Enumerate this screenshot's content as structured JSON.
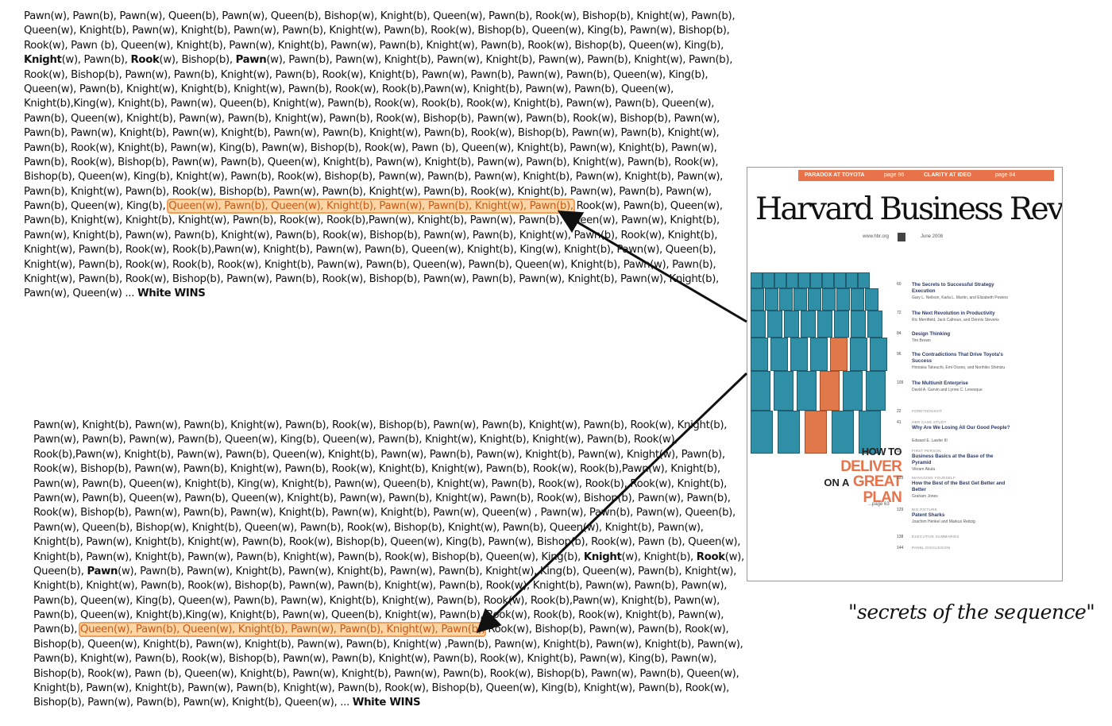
{
  "sequence_top": [
    "Pawn(w), Pawn(b), Pawn(w), Queen(b), Pawn(w), Queen(b), Bishop(w), Knight(b), Queen(w), Pawn(b), Rook(w), Bishop(b), Knight(w), Pawn(b),",
    "Queen(w), Knight(b), Pawn(w), Knight(b), Pawn(w), Pawn(b), Knight(w), Pawn(b), Rook(w), Bishop(b), Queen(w), King(b), Pawn(w), Bishop(b),",
    "Rook(w), Pawn (b), Queen(w), Knight(b), Pawn(w), Knight(b), Pawn(w), Pawn(b), Knight(w), Pawn(b), Rook(w), Bishop(b), Queen(w), King(b),",
    "Knight(w), Pawn(b), Rook(w), Bishop(b), Pawn(w), Pawn(b), Pawn(w), Knight(b), Pawn(w), Knight(b), Pawn(w), Pawn(b), Knight(w), Pawn(b),",
    "Rook(w), Bishop(b), Pawn(w), Pawn(b), Knight(w), Pawn(b), Rook(w), Knight(b), Pawn(w), Pawn(b), Pawn(w), Pawn(b), Queen(w), King(b),",
    "Queen(w), Pawn(b), Knight(w), Knight(b), Knight(w), Pawn(b), Rook(w), Rook(b),Pawn(w), Knight(b), Pawn(w), Pawn(b), Queen(w),",
    "Knight(b),King(w), Knight(b), Pawn(w), Queen(b), Knight(w), Pawn(b), Rook(w), Rook(b), Rook(w), Knight(b), Pawn(w), Pawn(b), Queen(w),",
    "Pawn(b), Queen(w), Knight(b), Pawn(w), Pawn(b), Knight(w), Pawn(b), Rook(w), Bishop(b), Pawn(w), Pawn(b), Rook(w), Bishop(b), Pawn(w),",
    "Pawn(b), Pawn(w), Knight(b), Pawn(w), Knight(b), Pawn(w), Pawn(b), Knight(w), Pawn(b), Rook(w), Bishop(b), Pawn(w), Pawn(b), Knight(w),",
    "Pawn(b), Rook(w), Knight(b), Pawn(w), King(b), Pawn(w), Bishop(b), Rook(w), Pawn (b), Queen(w), Knight(b), Pawn(w), Knight(b), Pawn(w),",
    "Pawn(b), Rook(w), Bishop(b), Pawn(w), Pawn(b), Queen(w), Knight(b), Pawn(w), Knight(b), Pawn(w), Pawn(b), Knight(w), Pawn(b), Rook(w),",
    "Bishop(b), Queen(w), King(b), Knight(w), Pawn(b), Rook(w), Bishop(b), Pawn(w), Pawn(b), Pawn(w), Knight(b), Pawn(w), Knight(b), Pawn(w),",
    "Pawn(b), Knight(w), Pawn(b), Rook(w), Bishop(b), Pawn(w), Pawn(b), Knight(w), Pawn(b), Rook(w), Knight(b), Pawn(w), Pawn(b), Pawn(w),",
    "Pawn(b), Queen(w), King(b),",
    "Pawn(b), Knight(w), Knight(b), Knight(w), Pawn(b), Rook(w), Rook(b),Pawn(w), Knight(b), Pawn(w), Pawn(b), Queen(w), Pawn(w), Knight(b),",
    "Pawn(w), Knight(b), Pawn(w), Pawn(b), Knight(w), Pawn(b), Rook(w), Bishop(b), Pawn(w), Pawn(b), Knight(w), Pawn(b), Rook(w), Knight(b),",
    "Knight(w), Pawn(b), Rook(w), Rook(b),Pawn(w), Knight(b), Pawn(w), Pawn(b), Queen(w), Knight(b), King(w), Knight(b), Pawn(w), Queen(b),",
    "Knight(w), Pawn(b), Rook(w), Rook(b), Rook(w), Knight(b), Pawn(w), Pawn(b), Queen(w), Pawn(b), Queen(w), Knight(b), Pawn(w), Pawn(b),",
    "Knight(w), Pawn(b), Rook(w), Bishop(b), Pawn(w), Pawn(b), Rook(w), Bishop(b), Pawn(w), Pawn(b), Pawn(w), Knight(b), Pawn(w), Knight(b),",
    "Pawn(w), Queen(w) ... White WINS"
  ],
  "sequence_top_highlight_prefix": "Pawn(b), Queen(w), King(b),",
  "sequence_top_highlight": "Queen(w), Pawn(b), Queen(w), Knight(b), Pawn(w), Pawn(b), Knight(w), Pawn(b),",
  "sequence_top_highlight_suffix": "Rook(w), Pawn(b), Queen(w),",
  "sequence_bottom": [
    "Pawn(w), Knight(b), Pawn(w), Pawn(b), Knight(w), Pawn(b), Rook(w), Bishop(b), Pawn(w), Pawn(b), Knight(w), Pawn(b), Rook(w), Knight(b),",
    "Pawn(w), Pawn(b), Pawn(w), Pawn(b), Queen(w), King(b), Queen(w), Pawn(b), Knight(w), Knight(b), Knight(w), Pawn(b), Rook(w),",
    "Rook(b),Pawn(w), Knight(b), Pawn(w), Pawn(b), Queen(w), Knight(b), Pawn(w), Pawn(b), Pawn(w), Knight(b), Pawn(w), Knight(w), Pawn(b),",
    "Rook(w), Bishop(b), Pawn(w), Pawn(b), Knight(w), Pawn(b), Rook(w), Knight(b), Knight(w), Pawn(b), Rook(w), Rook(b),Pawn(w), Knight(b),",
    "Pawn(w), Pawn(b), Queen(w), Knight(b), King(w), Knight(b), Pawn(w), Queen(b), Knight(w), Pawn(b), Rook(w), Rook(b), Rook(w), Knight(b),",
    "Pawn(w), Pawn(b), Queen(w), Pawn(b), Queen(w), Knight(b), Pawn(w), Pawn(b), Knight(w), Pawn(b), Rook(w), Bishop(b), Pawn(w), Pawn(b),",
    "Rook(w), Bishop(b), Pawn(w), Pawn(b), Pawn(w), Knight(b), Pawn(w), Knight(b), Pawn(w), Queen(w) , Pawn(w), Pawn(b), Pawn(w), Queen(b),",
    "Pawn(w), Queen(b), Bishop(w), Knight(b), Queen(w), Pawn(b), Rook(w), Bishop(b), Knight(w), Pawn(b), Queen(w), Knight(b), Pawn(w),",
    "Knight(b), Pawn(w), Knight(b), Knight(w), Pawn(b), Rook(w), Bishop(b), Queen(w), King(b), Pawn(w), Bishop(b), Rook(w), Pawn (b), Queen(w),",
    "Knight(b), Pawn(w), Knight(b), Pawn(w), Pawn(b), Knight(w), Pawn(b), Rook(w), Bishop(b), Queen(w), King(b), Knight(w), Knight(b), Rook(w),",
    "Queen(b), Pawn(w), Pawn(b), Pawn(w), Knight(b), Pawn(w), Knight(b), Pawn(w), Pawn(b), Knight(w), King(b), Queen(w), Pawn(b), Knight(w),",
    "Knight(b), Knight(w), Pawn(b), Rook(w), Bishop(b), Pawn(w), Pawn(b), Knight(w), Pawn(b), Rook(w), Knight(b), Pawn(w), Pawn(b), Pawn(w),",
    "Pawn(b), Queen(w), King(b), Queen(w), Pawn(b), Pawn(w), Knight(b), Knight(w), Pawn(b), Rook(w), Rook(b),Pawn(w), Knight(b), Pawn(w),",
    "Pawn(b), Queen(w), Knight(b),King(w), Knight(b), Pawn(w), Queen(b), Knight(w), Pawn(b), Rook(w), Rook(b), Rook(w), Knight(b), Pawn(w),",
    "Pawn(b),",
    "Bishop(b), Queen(w), Knight(b), Pawn(w), Knight(b), Pawn(w), Pawn(b), Knight(w) ,Pawn(b), Pawn(w), Knight(b), Pawn(w), Knight(b), Pawn(w),",
    "Pawn(b), Knight(w), Pawn(b), Rook(w), Bishop(b), Pawn(w), Pawn(b), Knight(w), Pawn(b), Rook(w), Knight(b), Pawn(w), King(b), Pawn(w),",
    "Bishop(b), Rook(w), Pawn (b), Queen(w), Knight(b), Pawn(w), Knight(b), Pawn(w), Pawn(b), Rook(w), Bishop(b), Pawn(w), Pawn(b), Queen(w),",
    "Knight(b), Pawn(w), Knight(b), Pawn(w), Pawn(b), Knight(w), Pawn(b), Rook(w), Bishop(b), Queen(w), King(b), Knight(w), Pawn(b), Rook(w),",
    "Bishop(b), Pawn(w), Pawn(b), Pawn(w), Knight(b), Queen(w), ... White WINS"
  ],
  "sequence_bottom_highlight_prefix": "Pawn(b),",
  "sequence_bottom_highlight": "Queen(w), Pawn(b), Queen(w), Knight(b), Pawn(w), Pawn(b), Knight(w), Pawn(b),",
  "sequence_bottom_highlight_suffix": "Rook(w), Bishop(b), Pawn(w), Pawn(b), Rook(w),",
  "highlight_color": "#fbd5a3",
  "highlight_text_color": "#c85a1a",
  "arrow_color": "#111111",
  "cover": {
    "banner_left": "PARADOX AT TOYOTA",
    "banner_left_page": "page 96",
    "banner_right": "CLARITY AT IDEO",
    "banner_right_page": "page 84",
    "title": "Harvard Business Review",
    "url": "www.hbr.org",
    "date": "June 2008",
    "headline_how_to": "HOW TO",
    "headline_deliver": "DELIVER",
    "headline_on_a": "ON A",
    "headline_great": "GREAT",
    "headline_plan": "PLAN",
    "headline_page": "...page 63",
    "accent_color": "#e8734a",
    "door_color": "#2f8fa6",
    "toc": [
      {
        "num": "60",
        "title": "The Secrets to Successful Strategy Execution",
        "authors": "Gary L. Neilson, Karla L. Martin, and Elizabeth Powers"
      },
      {
        "num": "72",
        "title": "The Next Revolution in Productivity",
        "authors": "Ric Merrifield, Jack Calhoun, and Dennis Stevens"
      },
      {
        "num": "84",
        "title": "Design Thinking",
        "authors": "Tim Brown"
      },
      {
        "num": "96",
        "title": "The Contradictions That Drive Toyota's Success",
        "authors": "Hirotaka Takeuchi, Emi Osono, and Norihiko Shimizu"
      },
      {
        "num": "109",
        "title": "The Multiunit Enterprise",
        "authors": "David A. Garvin and Lynne C. Levesque"
      },
      {
        "num": "22",
        "kicker": "FORETHOUGHT"
      },
      {
        "num": "41",
        "kicker": "HBR CASE STUDY",
        "title": "Why Are We Losing All Our Good People?",
        "authors": "Edward E. Lawler III"
      },
      {
        "num": "53",
        "kicker": "FIRST PERSON",
        "title": "Business Basics at the Base of the Pyramid",
        "authors": "Vikram Akula"
      },
      {
        "num": "123",
        "kicker": "MANAGING YOURSELF",
        "title": "How the Best of the Best Get Better and Better",
        "authors": "Graham Jones"
      },
      {
        "num": "129",
        "kicker": "BIG PICTURE",
        "title": "Patent Sharks",
        "authors": "Joachim Henkel and Markus Reitzig"
      },
      {
        "num": "138",
        "kicker": "EXECUTIVE SUMMARIES"
      },
      {
        "num": "144",
        "kicker": "PANEL DISCUSSION"
      }
    ]
  },
  "caption": "\"secrets of the sequence\""
}
